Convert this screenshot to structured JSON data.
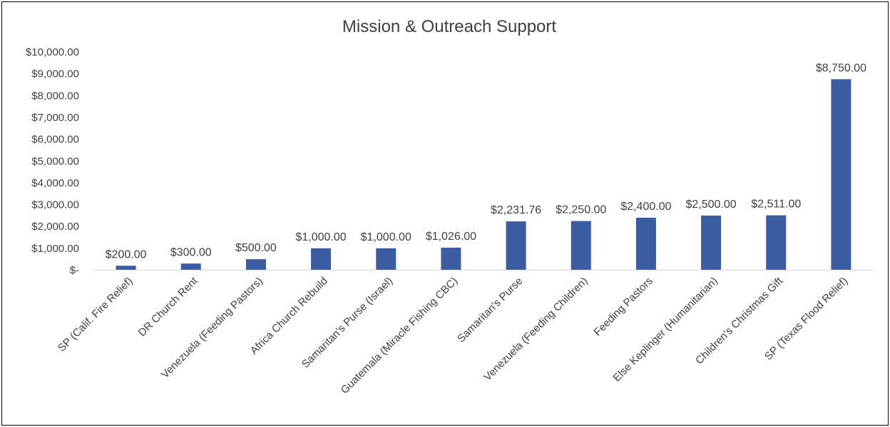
{
  "chart_data": {
    "type": "bar",
    "title": "Mission & Outreach Support",
    "xlabel": "",
    "ylabel": "",
    "ylim": [
      0,
      10000
    ],
    "yticks": [
      0,
      1000,
      2000,
      3000,
      4000,
      5000,
      6000,
      7000,
      8000,
      9000,
      10000
    ],
    "ytick_labels": [
      "$-",
      "$1,000.00",
      "$2,000.00",
      "$3,000.00",
      "$4,000.00",
      "$5,000.00",
      "$6,000.00",
      "$7,000.00",
      "$8,000.00",
      "$9,000.00",
      "$10,000.00"
    ],
    "grid": false,
    "legend": false,
    "categories": [
      "SP (Calif. Fire Relief)",
      "DR Church Rent",
      "Venezuela (Feeding Pastors)",
      "Africa Church Rebuild",
      "Samaritan's Purse (Israel)",
      "Guatemala (Miracle Fishing CBC)",
      "Samaritan's Purse",
      "Venezuela (Feeding Children)",
      "Feeding Pastors",
      "Else Keplinger (Humanitarian)",
      "Children's Christmas Gift",
      "SP (Texas Flood Relief)"
    ],
    "values": [
      200,
      300,
      500,
      1000,
      1000,
      1026,
      2231.76,
      2250,
      2400,
      2500,
      2511,
      8750
    ],
    "data_labels": [
      "$200.00",
      "$300.00",
      "$500.00",
      "$1,000.00",
      "$1,000.00",
      "$1,026.00",
      "$2,231.76",
      "$2,250.00",
      "$2,400.00",
      "$2,500.00",
      "$2,511.00",
      "$8,750.00"
    ],
    "bar_color": "#3b5ca0",
    "text_color": "#404040"
  }
}
